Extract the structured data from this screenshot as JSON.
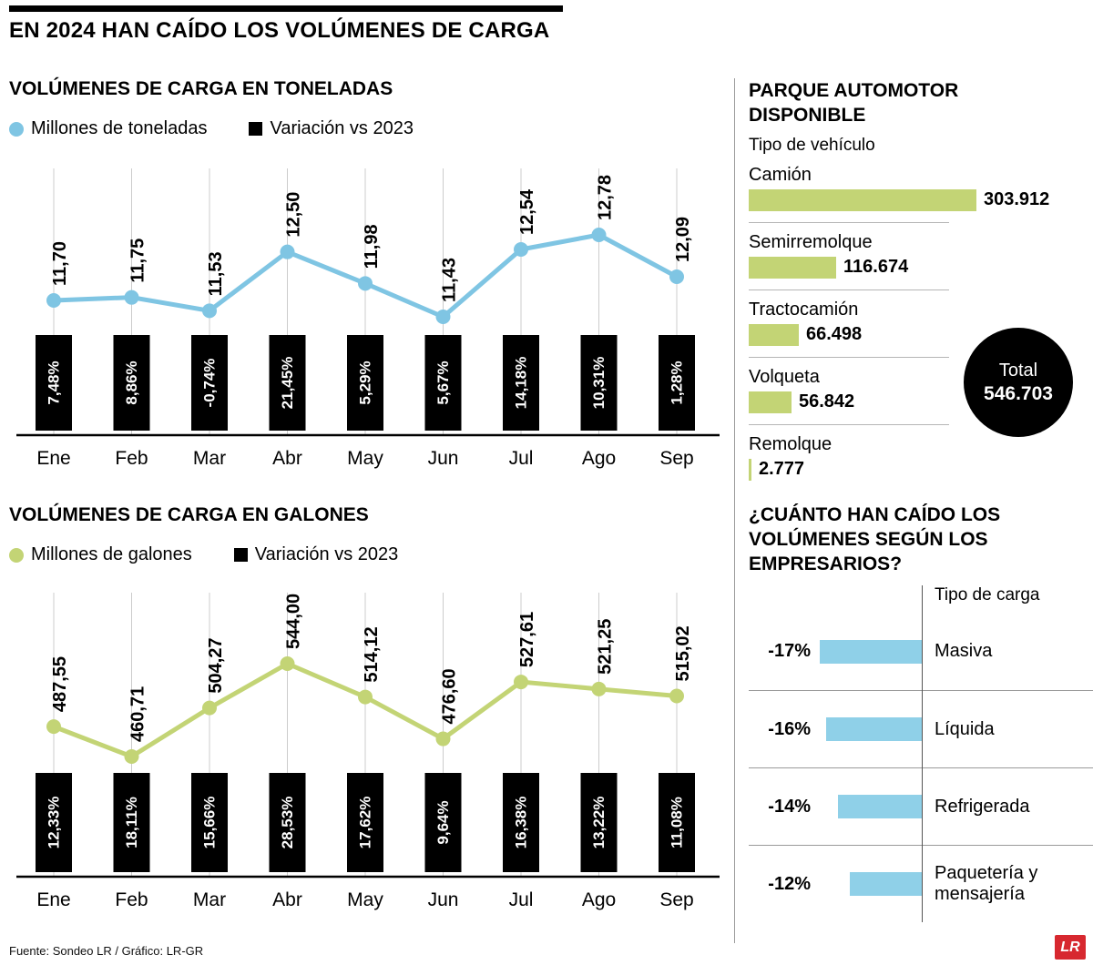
{
  "title": "EN 2024 HAN CAÍDO LOS VOLÚMENES DE CARGA",
  "colors": {
    "blue": "#7fc5e3",
    "green": "#c3d475",
    "cargo-blue": "#8fd0e8",
    "logo-red": "#d7282f",
    "grid": "#cccccc"
  },
  "footer": {
    "source": "Fuente: Sondeo LR / Gráfico: LR-GR",
    "logo_text": "LR"
  },
  "chart_data": [
    {
      "type": "line",
      "title": "VOLÚMENES DE CARGA EN TONELADAS",
      "color": "#7fc5e3",
      "legend": [
        {
          "label": "Millones de toneladas",
          "marker": "circle",
          "color": "#7fc5e3"
        },
        {
          "label": "Variación vs 2023",
          "marker": "square",
          "color": "#000000"
        }
      ],
      "categories": [
        "Ene",
        "Feb",
        "Mar",
        "Abr",
        "May",
        "Jun",
        "Jul",
        "Ago",
        "Sep"
      ],
      "series": [
        {
          "name": "Millones de toneladas",
          "values": [
            11.7,
            11.75,
            11.53,
            12.5,
            11.98,
            11.43,
            12.54,
            12.78,
            12.09
          ],
          "labels": [
            "11,70",
            "11,75",
            "11,53",
            "12,50",
            "11,98",
            "11,43",
            "12,54",
            "12,78",
            "12,09"
          ]
        },
        {
          "name": "Variación vs 2023",
          "values": [
            7.48,
            8.86,
            -0.74,
            21.45,
            5.29,
            5.67,
            14.18,
            10.31,
            1.28
          ],
          "labels": [
            "7,48%",
            "8,86%",
            "-0,74%",
            "21,45%",
            "5,29%",
            "5,67%",
            "14,18%",
            "10,31%",
            "1,28%"
          ]
        }
      ]
    },
    {
      "type": "line",
      "title": "VOLÚMENES DE CARGA EN GALONES",
      "color": "#c3d475",
      "legend": [
        {
          "label": "Millones de galones",
          "marker": "circle",
          "color": "#c3d475"
        },
        {
          "label": "Variación vs 2023",
          "marker": "square",
          "color": "#000000"
        }
      ],
      "categories": [
        "Ene",
        "Feb",
        "Mar",
        "Abr",
        "May",
        "Jun",
        "Jul",
        "Ago",
        "Sep"
      ],
      "series": [
        {
          "name": "Millones de galones",
          "values": [
            487.55,
            460.71,
            504.27,
            544.0,
            514.12,
            476.6,
            527.61,
            521.25,
            515.02
          ],
          "labels": [
            "487,55",
            "460,71",
            "504,27",
            "544,00",
            "514,12",
            "476,60",
            "527,61",
            "521,25",
            "515,02"
          ]
        },
        {
          "name": "Variación vs 2023",
          "values": [
            12.33,
            18.11,
            15.66,
            28.53,
            17.62,
            9.64,
            16.38,
            13.22,
            11.08
          ],
          "labels": [
            "12,33%",
            "18,11%",
            "15,66%",
            "28,53%",
            "17,62%",
            "9,64%",
            "16,38%",
            "13,22%",
            "11,08%"
          ]
        }
      ]
    },
    {
      "type": "bar",
      "title": "PARQUE AUTOMOTOR DISPONIBLE",
      "subtitle": "Tipo de vehículo",
      "color": "#c3d475",
      "categories": [
        "Camión",
        "Semirremolque",
        "Tractocamión",
        "Volqueta",
        "Remolque"
      ],
      "values": [
        303912,
        116674,
        66498,
        56842,
        2777
      ],
      "value_labels": [
        "303.912",
        "116.674",
        "66.498",
        "56.842",
        "2.777"
      ],
      "total": {
        "label": "Total",
        "value": "546.703"
      }
    },
    {
      "type": "bar",
      "title": "¿CUÁNTO HAN CAÍDO LOS VOLÚMENES SEGÚN LOS EMPRESARIOS?",
      "subtitle": "Tipo de carga",
      "color": "#8fd0e8",
      "categories": [
        "Masiva",
        "Líquida",
        "Refrigerada",
        "Paquetería y mensajería"
      ],
      "values": [
        -17,
        -16,
        -14,
        -12
      ],
      "value_labels": [
        "-17%",
        "-16%",
        "-14%",
        "-12%"
      ]
    }
  ]
}
